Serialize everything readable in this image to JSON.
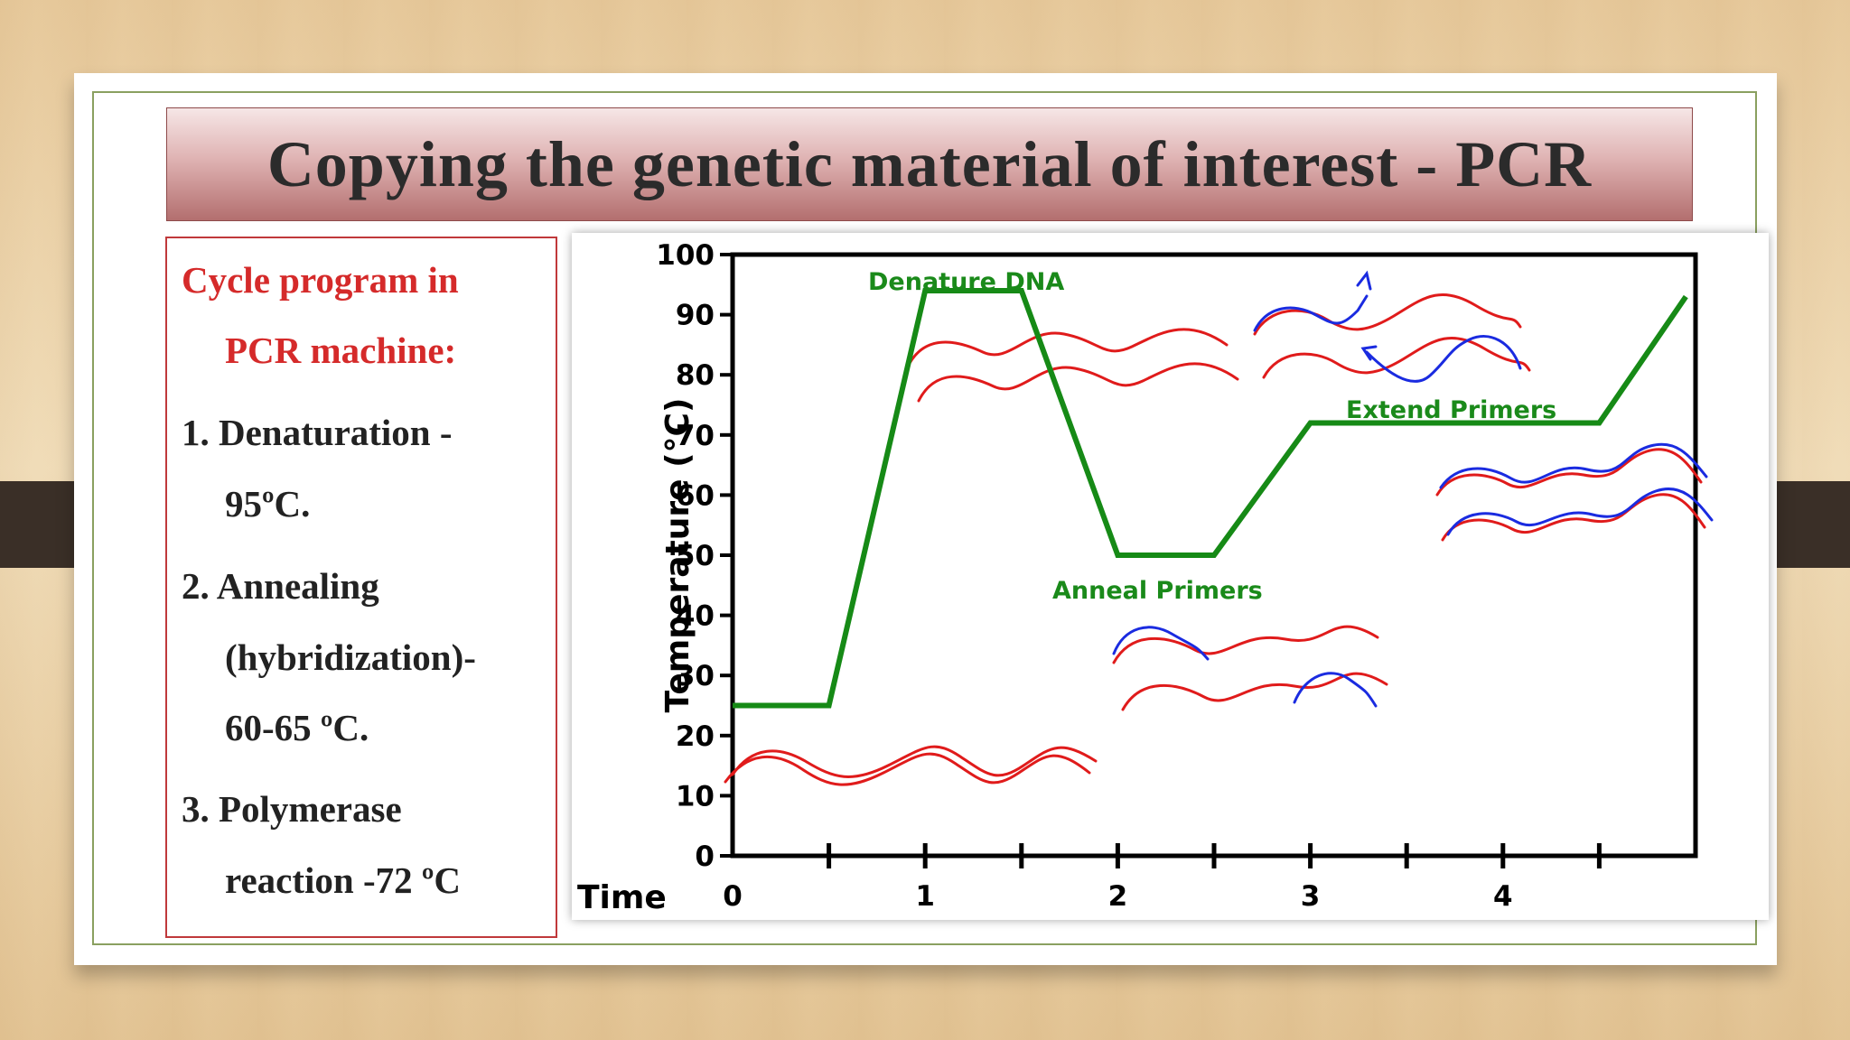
{
  "slide": {
    "title": "Copying the genetic material of  interest - PCR"
  },
  "textbox": {
    "heading_line1": "Cycle program in",
    "heading_line2": "PCR machine:",
    "item1_line1": "1. Denaturation  -",
    "item1_line2": "95ºC.",
    "item2_line1": "2. Annealing",
    "item2_line2": "(hybridization)-",
    "item2_line3": "60-65 ºC.",
    "item3_line1": "3. Polymerase",
    "item3_line2": "reaction -72 ºC"
  },
  "colors": {
    "profile_line": "#168a16",
    "dna_strand": "#e01b1b",
    "primer": "#1a2be0",
    "text_heading": "#d52a2a"
  },
  "chart_data": {
    "type": "line",
    "xlabel": "Time",
    "ylabel": "Temperature (°C)",
    "xlim": [
      0,
      5
    ],
    "ylim": [
      0,
      100
    ],
    "x_ticks": [
      0,
      1,
      2,
      3,
      4
    ],
    "y_ticks": [
      0,
      10,
      20,
      30,
      40,
      50,
      60,
      70,
      80,
      90,
      100
    ],
    "grid": false,
    "series": [
      {
        "x": [
          0,
          0.5,
          1.0,
          1.5,
          2.0,
          2.5,
          3.0,
          4.5,
          4.95
        ],
        "y": [
          25,
          25,
          94,
          94,
          50,
          50,
          72,
          72,
          93
        ]
      }
    ],
    "annotations": [
      {
        "text": "Denature DNA",
        "x": 1.25,
        "y": 97
      },
      {
        "text": "Anneal Primers",
        "x": 2.25,
        "y": 45
      },
      {
        "text": "Extend Primers",
        "x": 3.75,
        "y": 75
      }
    ],
    "illustrations": [
      "double-strand-dna",
      "separated-strands",
      "primers-annealed",
      "extending-strands",
      "new-double-strands"
    ]
  }
}
